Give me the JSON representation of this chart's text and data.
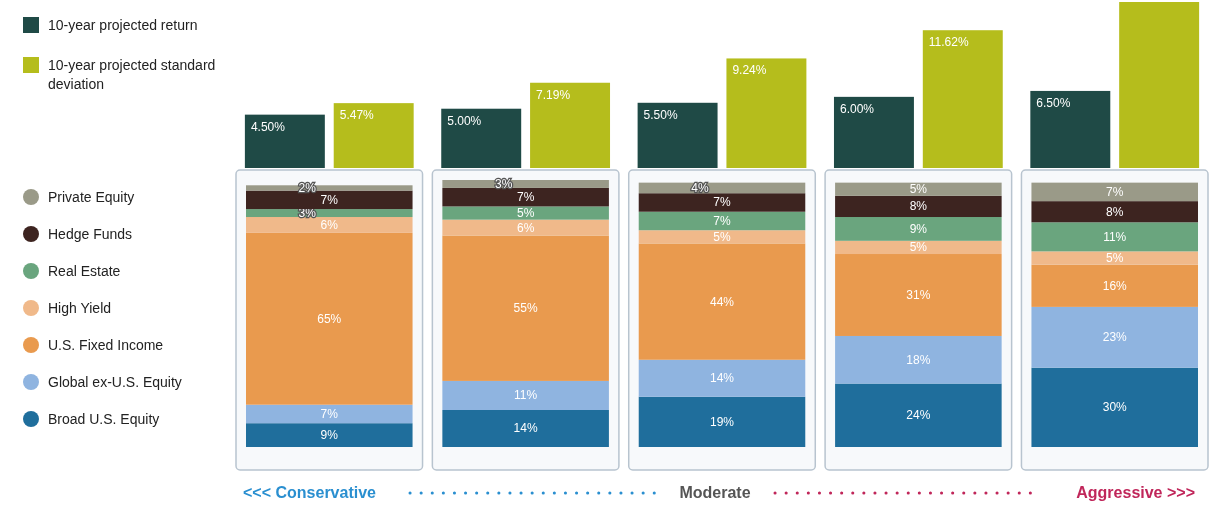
{
  "chart_data": [
    {
      "type": "bar",
      "categories": [
        null,
        null,
        null,
        null,
        null
      ],
      "legend": "top left",
      "series": [
        {
          "name": "10-year projected return",
          "color": "#1f4a46",
          "values": [
            4.5,
            5.0,
            5.5,
            6.0,
            6.5
          ],
          "value_labels": [
            "4.50%",
            "5.00%",
            "5.50%",
            "6.00%",
            "6.50%"
          ]
        },
        {
          "name": "10-year projected standard deviation",
          "color": "#b5bd1c",
          "values": [
            5.47,
            7.19,
            9.24,
            11.62,
            14.0
          ],
          "value_labels": [
            "5.47%",
            "7.19%",
            "9.24%",
            "11.62%",
            null
          ]
        }
      ]
    },
    {
      "type": "bar",
      "stacked": true,
      "categories": [
        null,
        null,
        null,
        null,
        null
      ],
      "legend": "left",
      "series": [
        {
          "name": "Broad U.S. Equity",
          "color": "#1f6e9c",
          "values": [
            9,
            14,
            19,
            24,
            30
          ],
          "value_labels": [
            "9%",
            "14%",
            "19%",
            "24%",
            "30%"
          ]
        },
        {
          "name": "Global ex-U.S. Equity",
          "color": "#8fb4e0",
          "values": [
            7,
            11,
            14,
            18,
            23
          ],
          "value_labels": [
            "7%",
            "11%",
            "14%",
            "18%",
            "23%"
          ]
        },
        {
          "name": "U.S. Fixed Income",
          "color": "#e99a4e",
          "values": [
            65,
            55,
            44,
            31,
            16
          ],
          "value_labels": [
            "65%",
            "55%",
            "44%",
            "31%",
            "16%"
          ]
        },
        {
          "name": "High Yield",
          "color": "#f0b98a",
          "values": [
            6,
            6,
            5,
            5,
            5
          ],
          "value_labels": [
            "6%",
            "6%",
            "5%",
            "5%",
            "5%"
          ]
        },
        {
          "name": "Real Estate",
          "color": "#6aa57e",
          "values": [
            3,
            5,
            7,
            9,
            11
          ],
          "value_labels": [
            "3%",
            "5%",
            "7%",
            "9%",
            "11%"
          ]
        },
        {
          "name": "Hedge Funds",
          "color": "#3d2420",
          "values": [
            7,
            7,
            7,
            8,
            8
          ],
          "value_labels": [
            "7%",
            "7%",
            "7%",
            "8%",
            "8%"
          ]
        },
        {
          "name": "Private Equity",
          "color": "#9a9a88",
          "values": [
            2,
            3,
            4,
            5,
            7
          ],
          "value_labels": [
            "2%",
            "3%",
            "4%",
            "5%",
            "7%"
          ]
        }
      ],
      "annotations": [
        "<<< Conservative",
        "Moderate",
        "Aggressive >>>"
      ]
    }
  ]
}
